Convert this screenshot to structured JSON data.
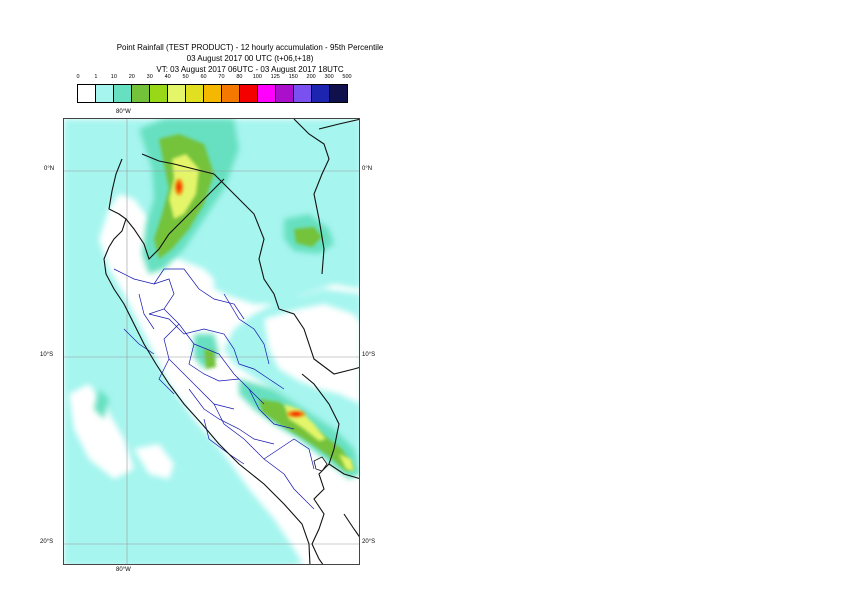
{
  "title": {
    "line1": "Point Rainfall (TEST PRODUCT) - 12 hourly accumulation - 95th Percentile",
    "line2": "03 August 2017 00 UTC (t+06,t+18)",
    "line3": "VT: 03 August 2017 06UTC - 03 August 2017 18UTC"
  },
  "legend": {
    "labels": [
      "0",
      "1",
      "10",
      "20",
      "30",
      "40",
      "50",
      "60",
      "70",
      "80",
      "100",
      "125",
      "150",
      "200",
      "300",
      "500"
    ],
    "colors": [
      "#ffffff",
      "#a6f5ef",
      "#66e0c0",
      "#74c23a",
      "#98d818",
      "#e4f56a",
      "#e0e020",
      "#f5b800",
      "#f57800",
      "#f50000",
      "#ff00ff",
      "#aa10cc",
      "#7a50f0",
      "#1c24b0",
      "#10104c"
    ]
  },
  "axes": {
    "top_lon": "80°W",
    "bottom_lon": "80°W",
    "lat_0_left": "0°N",
    "lat_0_right": "0°N",
    "lat_10_left": "10°S",
    "lat_10_right": "10°S",
    "lat_20_left": "20°S",
    "lat_20_right": "20°S"
  }
}
